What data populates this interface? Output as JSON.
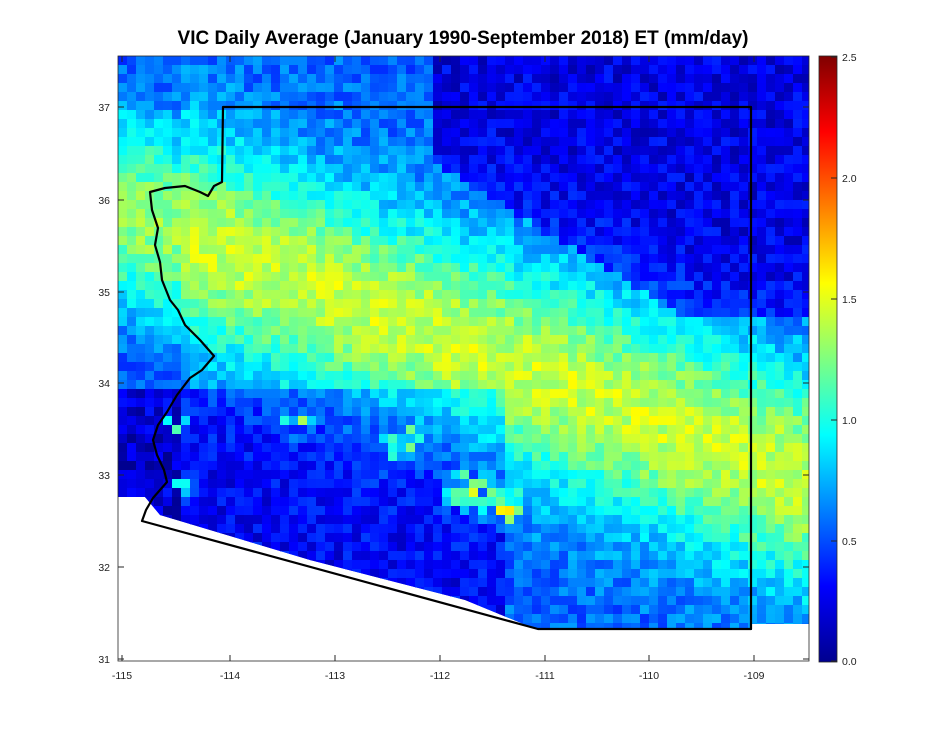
{
  "title": "VIC Daily Average (January 1990-September 2018) ET (mm/day)",
  "colors": {
    "background": "#ffffff",
    "boundary": "#000000",
    "colormap": "jet"
  },
  "map": {
    "region": "Arizona",
    "x_ticks": [
      "-115",
      "-114",
      "-113",
      "-112",
      "-111",
      "-110",
      "-109"
    ],
    "y_ticks": [
      "37",
      "36",
      "35",
      "34",
      "33",
      "32",
      "31"
    ],
    "xlim": [
      -115.1,
      -108.5
    ],
    "ylim": [
      30.95,
      37.55
    ]
  },
  "colorbar": {
    "ticks": [
      "2.5",
      "2.0",
      "1.5",
      "1.0",
      "0.5",
      "0.0"
    ],
    "range": [
      0,
      2.5
    ]
  }
}
